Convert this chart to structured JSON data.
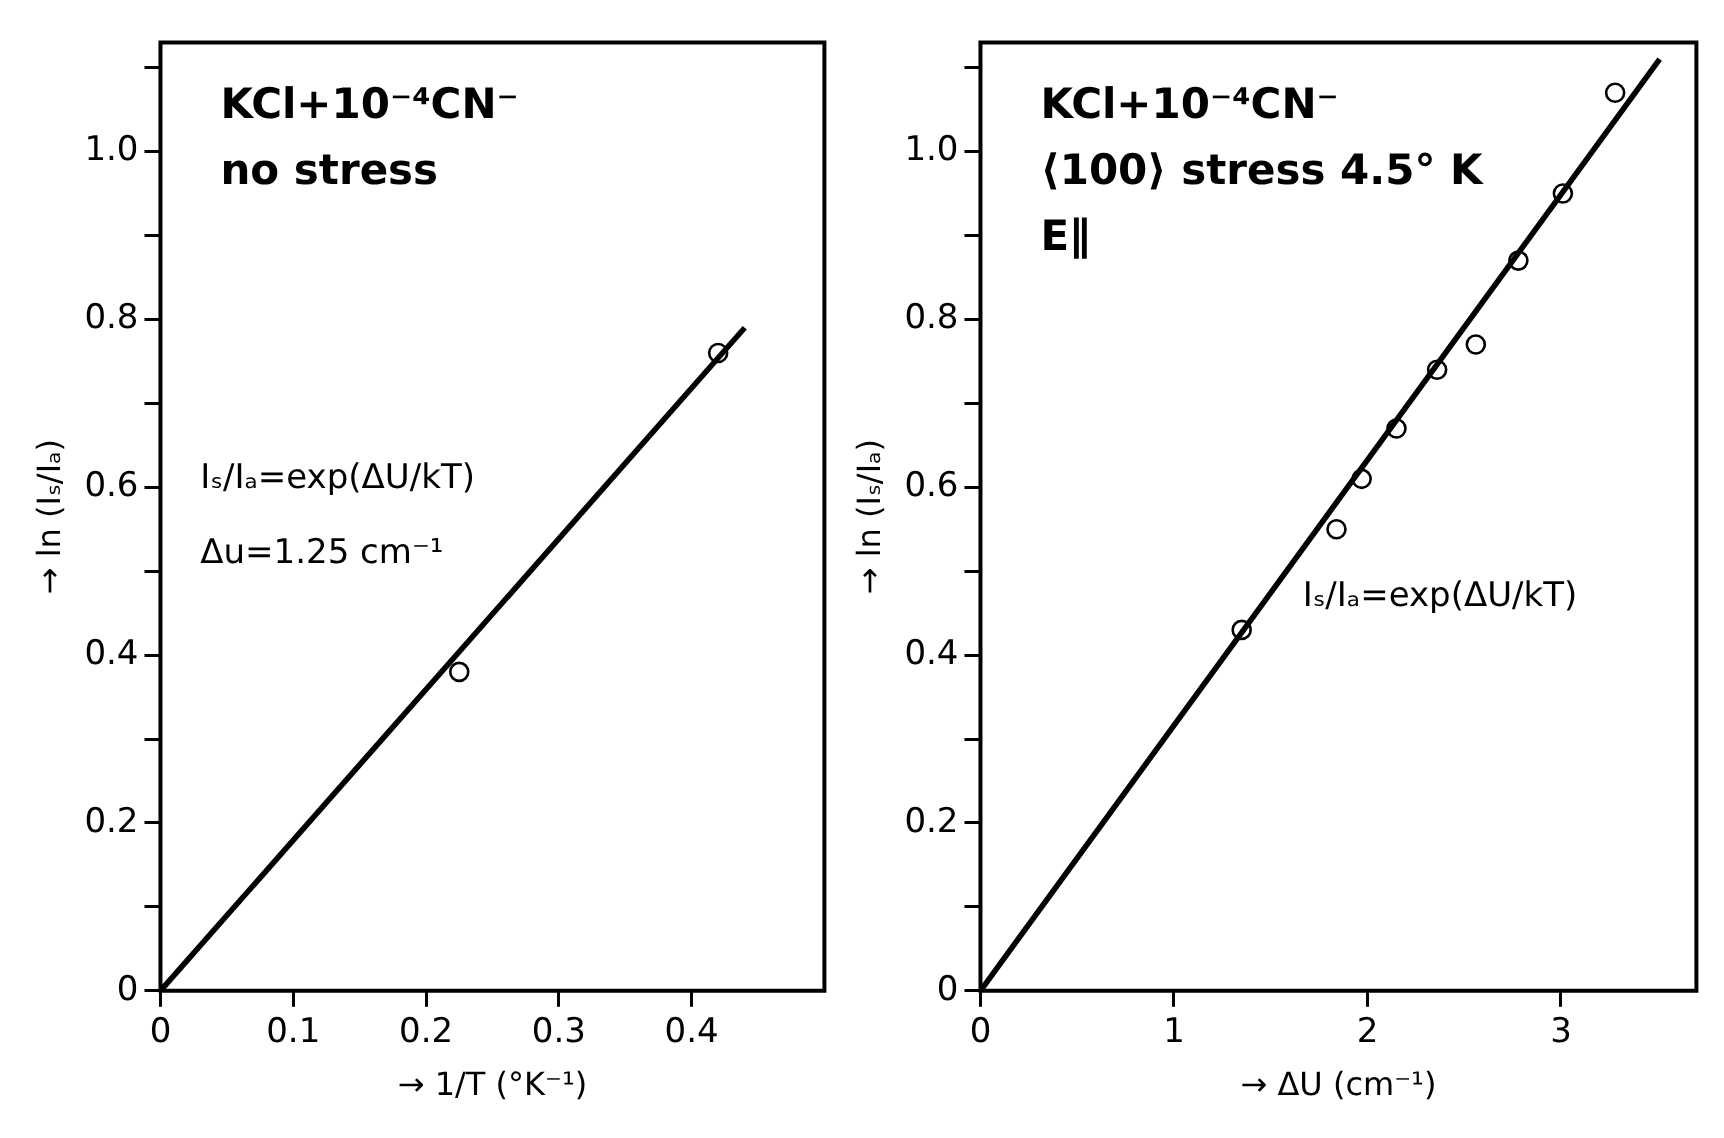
{
  "chart_data": [
    {
      "type": "scatter",
      "title": "KCl+10⁻⁴CN⁻",
      "xlabel": "→ 1/T (°K⁻¹)",
      "ylabel": "→ ln (Iₛ/Iₐ)",
      "annotations": [
        "no stress",
        "Iₛ/Iₐ=exp(ΔU/kT)",
        "Δu=1.25 cm⁻¹"
      ],
      "series": [
        {
          "color": "#000000",
          "marker": "circle",
          "x": [
            0.225,
            0.42
          ],
          "values": [
            0.38,
            0.76
          ]
        },
        {
          "type": "line",
          "color": "#000000",
          "marker": "none",
          "line_style": "solid",
          "x": [
            0,
            0.44
          ],
          "values": [
            0,
            0.79
          ]
        }
      ],
      "xlim": [
        0,
        0.5
      ],
      "xticks": [
        0,
        0.1,
        0.2,
        0.3,
        0.4
      ],
      "ylim": [
        0,
        1.13
      ],
      "yticks": [
        0,
        {
          "value": 0.1,
          "label": null
        },
        0.2,
        {
          "value": 0.3,
          "label": null
        },
        0.4,
        {
          "value": 0.5,
          "label": null
        },
        0.6,
        {
          "value": 0.7,
          "label": null
        },
        0.8,
        {
          "value": 0.9,
          "label": null
        },
        {
          "value": 1,
          "label": "1.0"
        },
        {
          "value": 1.1,
          "label": null
        }
      ],
      "grid": false,
      "legend": false
    },
    {
      "type": "scatter",
      "title": "KCl+10⁻⁴CN⁻",
      "xlabel": "→ ΔU (cm⁻¹)",
      "ylabel": "→ ln (Iₛ/Iₐ)",
      "annotations": [
        "⟨100⟩ stress 4.5° K",
        "E∥",
        "Iₛ/Iₐ=exp(ΔU/kT)"
      ],
      "series": [
        {
          "color": "#000000",
          "marker": "circle",
          "x": [
            1.35,
            1.84,
            1.97,
            2.15,
            2.36,
            2.56,
            2.78,
            3.01,
            3.28
          ],
          "values": [
            0.43,
            0.55,
            0.61,
            0.67,
            0.74,
            0.77,
            0.87,
            0.95,
            1.07
          ]
        },
        {
          "type": "line",
          "color": "#000000",
          "marker": "none",
          "line_style": "solid",
          "x": [
            0,
            3.51
          ],
          "values": [
            0,
            1.11
          ]
        }
      ],
      "xlim": [
        0,
        3.7
      ],
      "xticks": [
        0,
        1,
        2,
        3
      ],
      "ylim": [
        0,
        1.13
      ],
      "yticks": [
        0,
        {
          "value": 0.1,
          "label": null
        },
        0.2,
        {
          "value": 0.3,
          "label": null
        },
        0.4,
        {
          "value": 0.5,
          "label": null
        },
        0.6,
        {
          "value": 0.7,
          "label": null
        },
        0.8,
        {
          "value": 0.9,
          "label": null
        },
        {
          "value": 1,
          "label": "1.0"
        },
        {
          "value": 1.1,
          "label": null
        }
      ],
      "grid": false,
      "legend": false
    }
  ]
}
